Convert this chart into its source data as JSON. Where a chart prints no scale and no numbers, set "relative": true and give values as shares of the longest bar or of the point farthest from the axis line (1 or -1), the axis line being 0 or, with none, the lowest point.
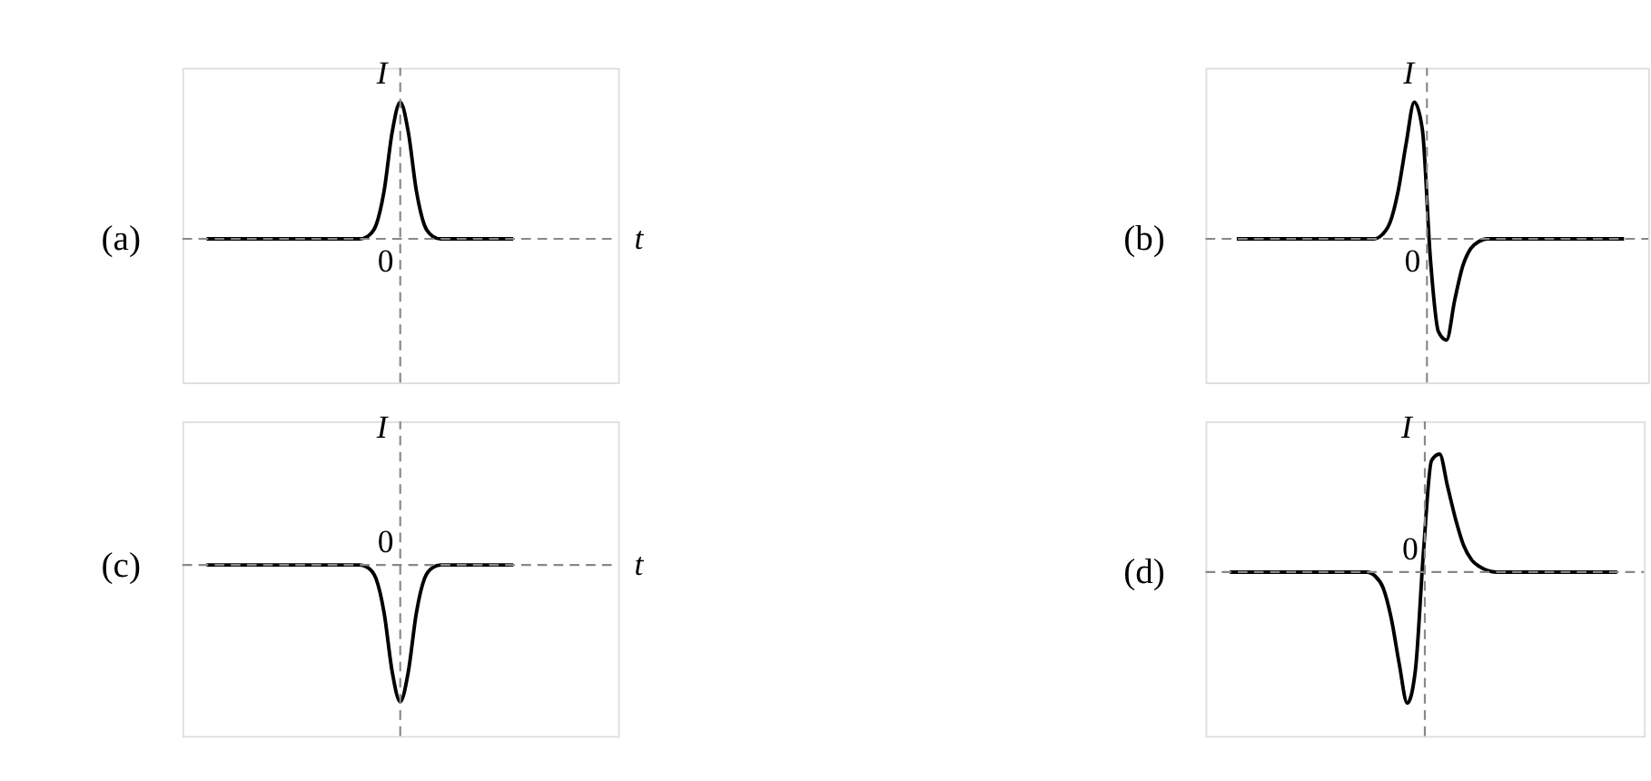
{
  "chart_data": [
    {
      "type": "line",
      "title": "(a)",
      "xlabel": "t",
      "ylabel": "I",
      "relative": true,
      "annotations": [
        "0"
      ],
      "categories": [
        null,
        null,
        null,
        null,
        null,
        null,
        null,
        null,
        null,
        null,
        null,
        null,
        null,
        null,
        null,
        null,
        null,
        null,
        null,
        null,
        null,
        null,
        null,
        null,
        null,
        null,
        null,
        null,
        null,
        null,
        null,
        null,
        null,
        null,
        null,
        null,
        null,
        null,
        null
      ],
      "series": [
        {
          "color": "#000000",
          "values": [
            0,
            0,
            0,
            0,
            0,
            0,
            0,
            0,
            0,
            0,
            0,
            0,
            0,
            0,
            0,
            0,
            0,
            0,
            0,
            0,
            0.02,
            0.1,
            0.35,
            0.78,
            1,
            0.78,
            0.35,
            0.1,
            0.02,
            0,
            0,
            0,
            0,
            0,
            0,
            0,
            0,
            0,
            0
          ]
        }
      ]
    },
    {
      "type": "line",
      "title": "(b)",
      "ylabel": "I",
      "relative": true,
      "annotations": [
        "0"
      ],
      "categories": [
        null,
        null,
        null,
        null,
        null,
        null,
        null,
        null,
        null,
        null,
        null,
        null,
        null,
        null,
        null,
        null,
        null,
        null,
        null,
        null,
        null,
        null,
        null,
        null,
        null,
        null,
        null,
        null,
        null,
        null,
        null,
        null,
        null,
        null,
        null,
        null,
        null,
        null,
        null,
        null,
        null,
        null,
        null,
        null,
        null,
        null,
        null,
        null,
        null
      ],
      "series": [
        {
          "color": "#000000",
          "values": [
            0,
            0,
            0,
            0,
            0,
            0,
            0,
            0,
            0,
            0,
            0,
            0,
            0,
            0,
            0,
            0,
            0,
            0,
            0.03,
            0.12,
            0.35,
            0.7,
            1,
            0.8,
            -0.15,
            -0.68,
            -0.74,
            -0.45,
            -0.2,
            -0.07,
            -0.02,
            0,
            0,
            0,
            0,
            0,
            0,
            0,
            0,
            0,
            0,
            0,
            0,
            0,
            0,
            0,
            0,
            0,
            0
          ]
        }
      ]
    },
    {
      "type": "line",
      "title": "(c)",
      "xlabel": "t",
      "ylabel": "I",
      "relative": true,
      "annotations": [
        "0"
      ],
      "categories": [
        null,
        null,
        null,
        null,
        null,
        null,
        null,
        null,
        null,
        null,
        null,
        null,
        null,
        null,
        null,
        null,
        null,
        null,
        null,
        null,
        null,
        null,
        null,
        null,
        null,
        null,
        null,
        null,
        null,
        null,
        null,
        null,
        null,
        null,
        null,
        null,
        null,
        null,
        null
      ],
      "series": [
        {
          "color": "#000000",
          "values": [
            0,
            0,
            0,
            0,
            0,
            0,
            0,
            0,
            0,
            0,
            0,
            0,
            0,
            0,
            0,
            0,
            0,
            0,
            0,
            0,
            -0.02,
            -0.1,
            -0.35,
            -0.78,
            -1,
            -0.78,
            -0.35,
            -0.1,
            -0.02,
            0,
            0,
            0,
            0,
            0,
            0,
            0,
            0,
            0,
            0
          ]
        }
      ]
    },
    {
      "type": "line",
      "title": "(d)",
      "ylabel": "I",
      "relative": true,
      "annotations": [
        "0"
      ],
      "categories": [
        null,
        null,
        null,
        null,
        null,
        null,
        null,
        null,
        null,
        null,
        null,
        null,
        null,
        null,
        null,
        null,
        null,
        null,
        null,
        null,
        null,
        null,
        null,
        null,
        null,
        null,
        null,
        null,
        null,
        null,
        null,
        null,
        null,
        null,
        null,
        null,
        null,
        null,
        null,
        null,
        null,
        null,
        null,
        null,
        null,
        null,
        null,
        null,
        null
      ],
      "series": [
        {
          "color": "#000000",
          "values": [
            0,
            0,
            0,
            0,
            0,
            0,
            0,
            0,
            0,
            0,
            0,
            0,
            0,
            0,
            0,
            0,
            0,
            0,
            -0.03,
            -0.12,
            -0.35,
            -0.7,
            -1,
            -0.75,
            0.15,
            0.85,
            0.9,
            0.65,
            0.4,
            0.2,
            0.09,
            0.04,
            0.01,
            0,
            0,
            0,
            0,
            0,
            0,
            0,
            0,
            0,
            0,
            0,
            0,
            0,
            0,
            0,
            0
          ]
        }
      ]
    }
  ]
}
